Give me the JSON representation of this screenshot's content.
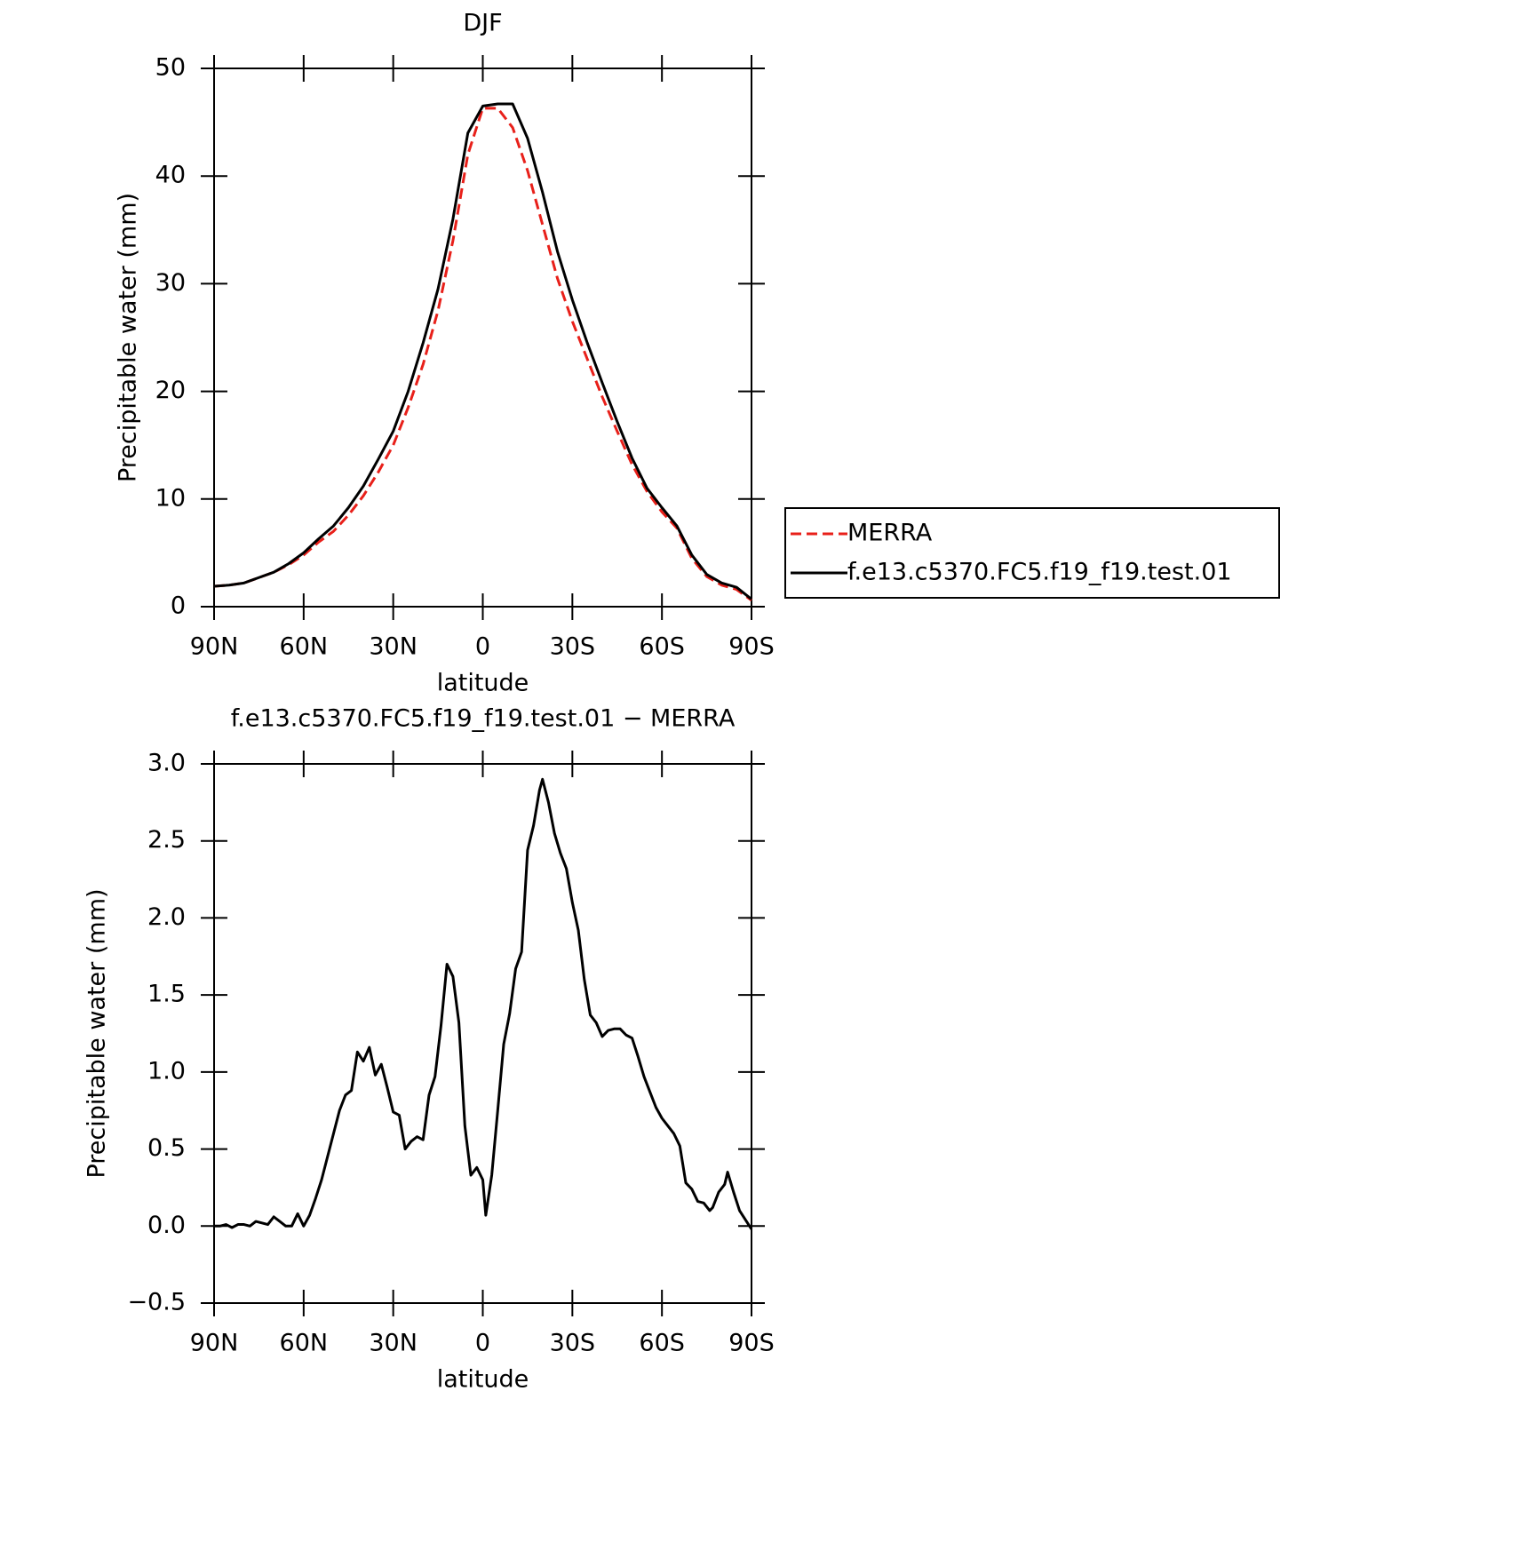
{
  "chart_data": [
    {
      "type": "line",
      "title": "DJF",
      "x_label": "latitude",
      "y_label": "Precipitable water (mm)",
      "x": [
        90,
        85,
        80,
        75,
        70,
        65,
        60,
        55,
        50,
        45,
        40,
        35,
        30,
        25,
        20,
        15,
        10,
        5,
        0,
        -5,
        -10,
        -15,
        -20,
        -25,
        -30,
        -35,
        -40,
        -45,
        -50,
        -55,
        -60,
        -65,
        -70,
        -75,
        -80,
        -85,
        -90
      ],
      "series": [
        {
          "name": "MERRA",
          "color": "#e8201a",
          "linestyle": "dashed",
          "values": [
            1.9,
            2.0,
            2.2,
            2.7,
            3.2,
            3.9,
            4.8,
            6.0,
            7.0,
            8.5,
            10.3,
            12.5,
            15.0,
            18.5,
            22.5,
            27.5,
            34,
            42,
            46.3,
            46.3,
            44.5,
            40.5,
            35.5,
            30.5,
            26.5,
            23,
            19.5,
            16.3,
            13.2,
            10.7,
            8.8,
            7.3,
            4.5,
            2.8,
            2.0,
            1.6,
            0.6
          ]
        },
        {
          "name": "f.e13.c5370.FC5.f19_f19.test.01",
          "color": "#000000",
          "linestyle": "solid",
          "values": [
            1.9,
            2.0,
            2.2,
            2.7,
            3.2,
            4.0,
            5.0,
            6.3,
            7.5,
            9.2,
            11.2,
            13.7,
            16.3,
            20,
            24.5,
            29.5,
            36,
            44,
            46.5,
            46.7,
            46.7,
            43.5,
            38.5,
            33,
            28.5,
            24.5,
            20.8,
            17.2,
            13.8,
            11.0,
            9.2,
            7.5,
            4.8,
            3.0,
            2.2,
            1.8,
            0.7
          ]
        }
      ],
      "xlim": [
        90,
        -90
      ],
      "xticks": [
        {
          "value": 90,
          "label": "90N"
        },
        {
          "value": 60,
          "label": "60N"
        },
        {
          "value": 30,
          "label": "30N"
        },
        0,
        {
          "value": -30,
          "label": "30S"
        },
        {
          "value": -60,
          "label": "60S"
        },
        {
          "value": -90,
          "label": "90S"
        }
      ],
      "ylim": [
        0,
        50
      ],
      "yticks": [
        0,
        10,
        20,
        30,
        40,
        50
      ],
      "legend": "outside-right",
      "grid": false
    },
    {
      "type": "line",
      "title": "f.e13.c5370.FC5.f19_f19.test.01 − MERRA",
      "x_label": "latitude",
      "y_label": "Precipitable water (mm)",
      "x": [
        90,
        88,
        86,
        84,
        82,
        80,
        78,
        76,
        74,
        72,
        70,
        68,
        66,
        64,
        62,
        60,
        58,
        56,
        54,
        52,
        50,
        48,
        46,
        44,
        42,
        40,
        38,
        36,
        34,
        32,
        30,
        28,
        26,
        24,
        22,
        20,
        18,
        16,
        14,
        12,
        10,
        8,
        6,
        4,
        2,
        0,
        -1,
        -3,
        -5,
        -7,
        -9,
        -11,
        -13,
        -15,
        -17,
        -19,
        -20,
        -22,
        -24,
        -26,
        -28,
        -30,
        -32,
        -34,
        -36,
        -38,
        -40,
        -42,
        -44,
        -46,
        -48,
        -50,
        -52,
        -54,
        -56,
        -58,
        -60,
        -62,
        -64,
        -66,
        -68,
        -70,
        -72,
        -74,
        -76,
        -77,
        -79,
        -81,
        -82,
        -84,
        -86,
        -90
      ],
      "series": [
        {
          "name": null,
          "color": "#000000",
          "linestyle": "solid",
          "values": [
            0.0,
            0.0,
            0.01,
            -0.01,
            0.01,
            0.01,
            0.0,
            0.03,
            0.02,
            0.01,
            0.06,
            0.03,
            0.0,
            0.0,
            0.08,
            0.0,
            0.07,
            0.18,
            0.3,
            0.45,
            0.6,
            0.75,
            0.85,
            0.88,
            1.13,
            1.07,
            1.16,
            0.98,
            1.05,
            0.9,
            0.74,
            0.72,
            0.5,
            0.55,
            0.58,
            0.56,
            0.85,
            0.97,
            1.3,
            1.7,
            1.62,
            1.32,
            0.65,
            0.33,
            0.38,
            0.3,
            0.07,
            0.33,
            0.75,
            1.18,
            1.38,
            1.67,
            1.78,
            2.44,
            2.6,
            2.83,
            2.9,
            2.75,
            2.55,
            2.42,
            2.32,
            2.1,
            1.92,
            1.6,
            1.37,
            1.32,
            1.23,
            1.27,
            1.28,
            1.28,
            1.24,
            1.22,
            1.1,
            0.97,
            0.87,
            0.77,
            0.7,
            0.65,
            0.6,
            0.52,
            0.28,
            0.24,
            0.16,
            0.15,
            0.1,
            0.12,
            0.22,
            0.27,
            0.35,
            0.22,
            0.1,
            -0.02
          ]
        }
      ],
      "xlim": [
        90,
        -90
      ],
      "xticks": [
        {
          "value": 90,
          "label": "90N"
        },
        {
          "value": 60,
          "label": "60N"
        },
        {
          "value": 30,
          "label": "30N"
        },
        0,
        {
          "value": -30,
          "label": "30S"
        },
        {
          "value": -60,
          "label": "60S"
        },
        {
          "value": -90,
          "label": "90S"
        }
      ],
      "ylim": [
        -0.5,
        3.0
      ],
      "yticks": [
        {
          "value": -0.5,
          "label": "−0.5"
        },
        {
          "value": 0,
          "label": "0.0"
        },
        0.5,
        {
          "value": 1,
          "label": "1.0"
        },
        1.5,
        {
          "value": 2,
          "label": "2.0"
        },
        2.5,
        {
          "value": 3,
          "label": "3.0"
        }
      ],
      "grid": false
    }
  ]
}
